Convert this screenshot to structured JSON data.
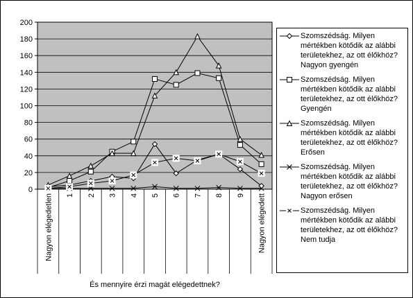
{
  "chart_data": {
    "type": "line",
    "xlabel": "És mennyire érzi magát elégedettnek?",
    "categories": [
      "Nagyon elégedetlen",
      "1",
      "2",
      "3",
      "4",
      "5",
      "6",
      "7",
      "8",
      "9",
      "Nagyon elégedett"
    ],
    "series": [
      {
        "name": "Szomszédság. Milyen mértékben kötődik az alábbi területekhez, az ott élőkhöz? Nagyon gyengén",
        "color": "#000000",
        "marker": "diamond",
        "values": [
          3,
          5,
          10,
          15,
          13,
          54,
          19,
          35,
          42,
          24,
          4
        ]
      },
      {
        "name": "Szomszédság. Milyen mértékben kötődik az alábbi területekhez, az ott élőkhöz? Gyengén",
        "color": "#000000",
        "marker": "square",
        "values": [
          2,
          10,
          21,
          45,
          57,
          132,
          125,
          139,
          133,
          53,
          30
        ]
      },
      {
        "name": "Szomszédság. Milyen mértékben kötődik az alábbi területekhez, az ott élőkhöz? Erősen",
        "color": "#000000",
        "marker": "triangle",
        "values": [
          5,
          16,
          28,
          43,
          43,
          112,
          140,
          183,
          148,
          60,
          41
        ]
      },
      {
        "name": "Szomszédság. Milyen mértékben kötődik az alábbi területekhez, az ott élőkhöz? Nagyon erősen",
        "color": "#000000",
        "marker": "x",
        "values": [
          1,
          1,
          1,
          1,
          1,
          3,
          1,
          1,
          2,
          1,
          1
        ]
      },
      {
        "name": "Szomszédság. Milyen mértékben kötődik az alábbi területekhez, az ott élőkhöz? Nem tudja",
        "color": "#000000",
        "marker": "xbox",
        "values": [
          1,
          3,
          7,
          10,
          17,
          32,
          37,
          34,
          42,
          33,
          19
        ]
      }
    ],
    "ylim": [
      0,
      200
    ],
    "yticks": [
      0,
      20,
      40,
      60,
      80,
      100,
      120,
      140,
      160,
      180,
      200
    ],
    "grid": true,
    "plot_background": "#c0c0c0",
    "legend": "right"
  }
}
